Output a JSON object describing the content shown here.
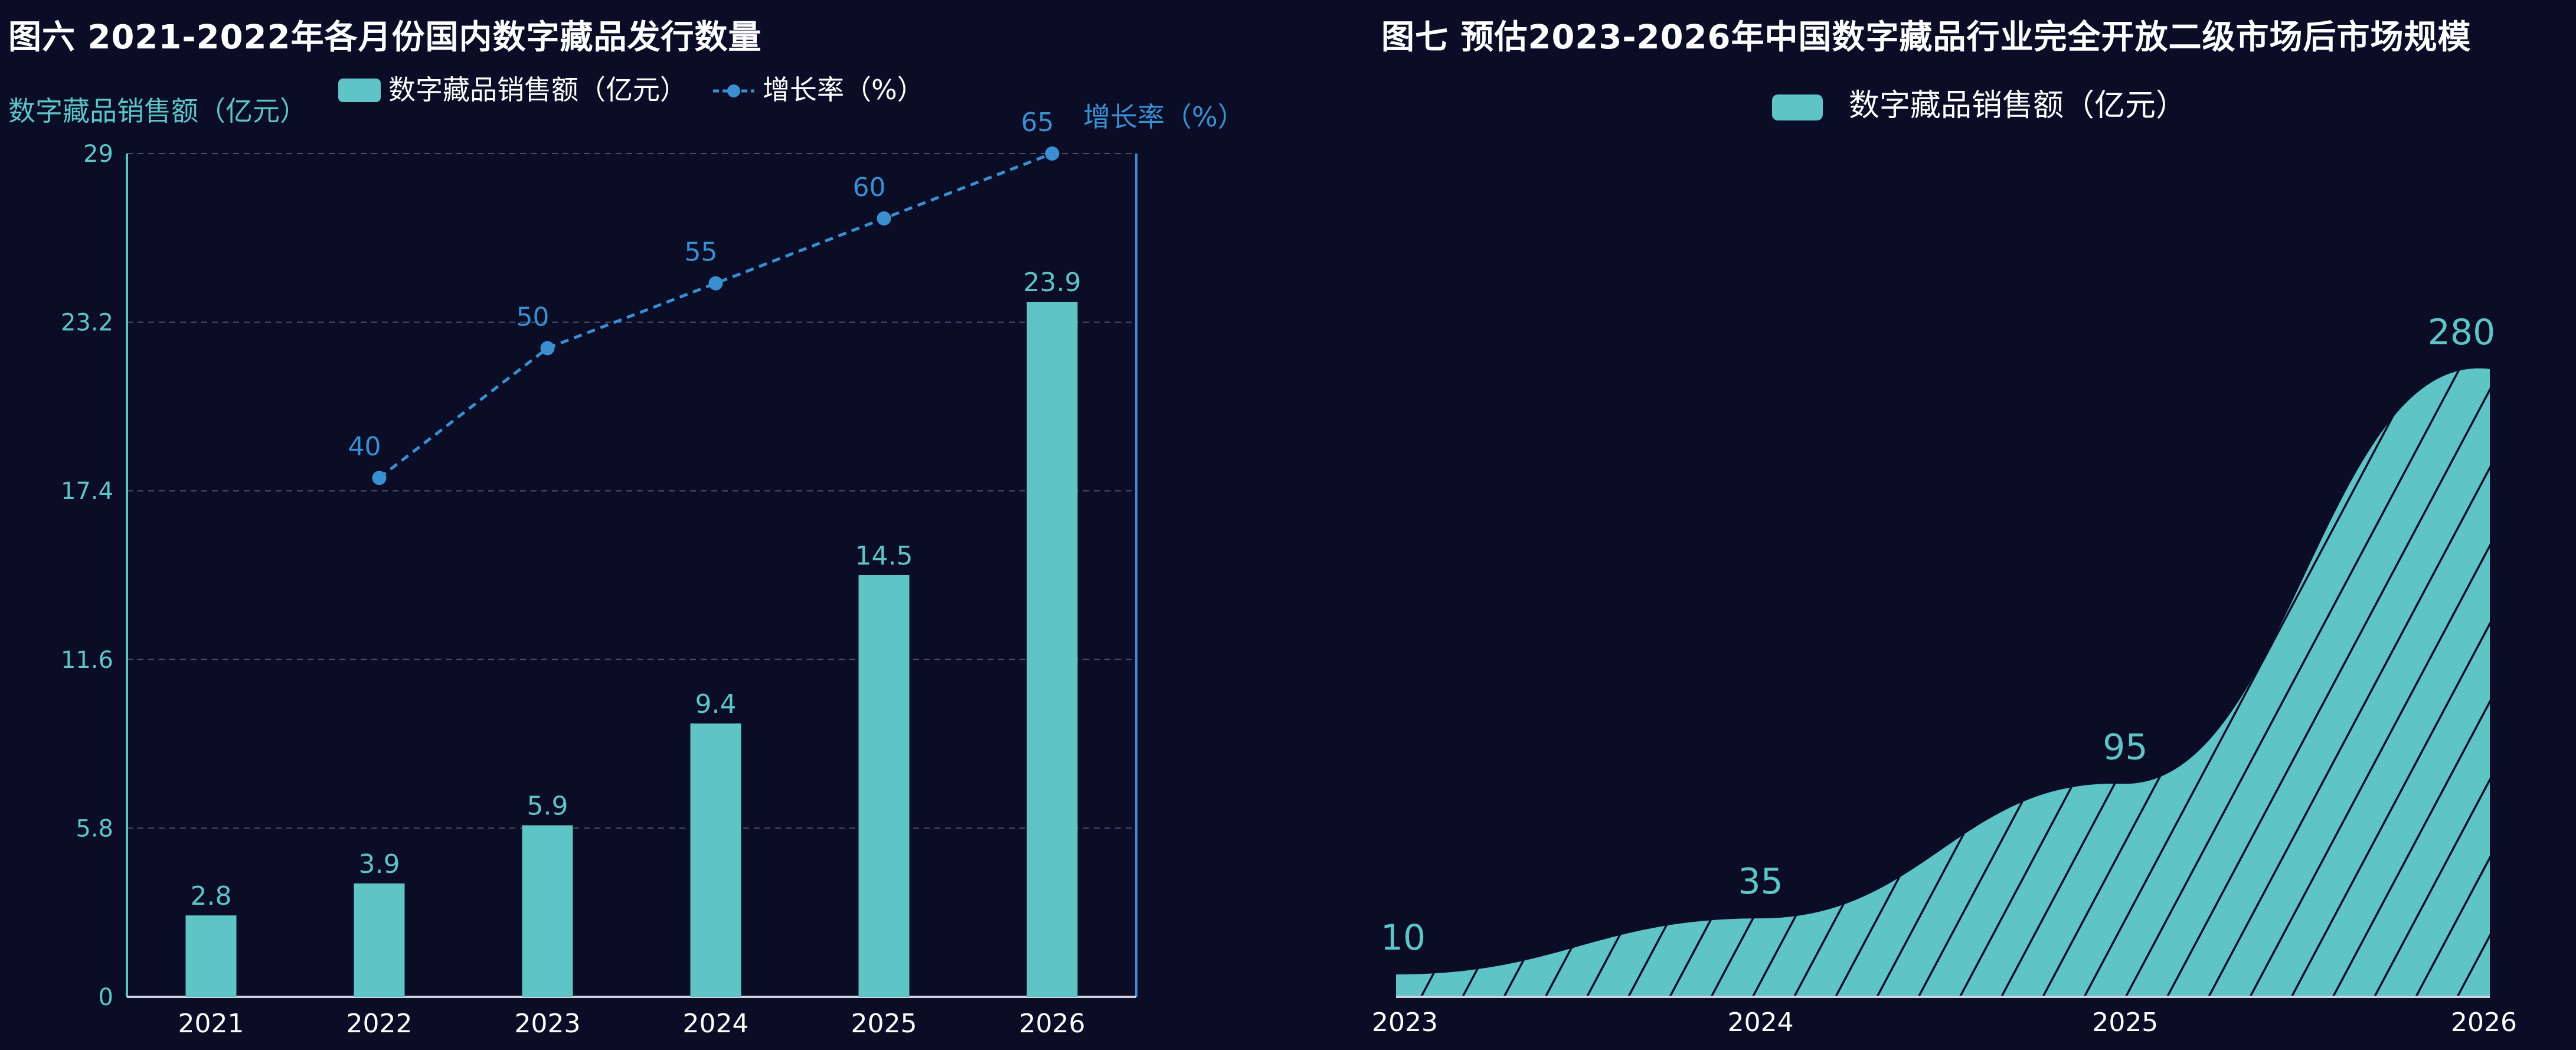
{
  "colors": {
    "background": "#0b0d27",
    "bar": "#5ec4c6",
    "line": "#3a8fd0",
    "grid": "#4a5068",
    "axis": "#5ec4c6",
    "right_axis": "#3a8fd0"
  },
  "chart_data": [
    {
      "type": "bar",
      "title": "图六 2021-2022年各月份国内数字藏品发行数量",
      "ylabel": "数字藏品销售额（亿元）",
      "y2label": "增长率（%）",
      "categories": [
        "2021",
        "2022",
        "2023",
        "2024",
        "2025",
        "2026"
      ],
      "ylim": [
        0,
        29
      ],
      "yticks": [
        "0",
        "5.8",
        "11.6",
        "17.4",
        "23.2",
        "29"
      ],
      "y2lim": [
        0,
        65
      ],
      "grid": true,
      "legend": "top",
      "series": [
        {
          "name": "数字藏品销售额（亿元）",
          "type": "bar",
          "values": [
            2.8,
            3.9,
            5.9,
            9.4,
            14.5,
            23.9
          ],
          "labels": [
            "2.8",
            "3.9",
            "5.9",
            "9.4",
            "14.5",
            "23.9"
          ]
        },
        {
          "name": "增长率（%）",
          "type": "line",
          "style": "dashed",
          "axis": "right",
          "values": [
            null,
            40,
            50,
            55,
            60,
            65
          ],
          "labels": [
            "",
            "40",
            "50",
            "55",
            "60",
            "65"
          ]
        }
      ]
    },
    {
      "type": "area",
      "title": "图七 预估2023-2026年中国数字藏品行业完全开放二级市场后市场规模",
      "categories": [
        "2023",
        "2024",
        "2025",
        "2026"
      ],
      "grid": false,
      "legend": "top",
      "series": [
        {
          "name": "数字藏品销售额（亿元）",
          "values": [
            10,
            35,
            95,
            280
          ],
          "labels": [
            "10",
            "35",
            "95",
            "280"
          ],
          "pattern": "diagonal-hatch"
        }
      ]
    }
  ]
}
